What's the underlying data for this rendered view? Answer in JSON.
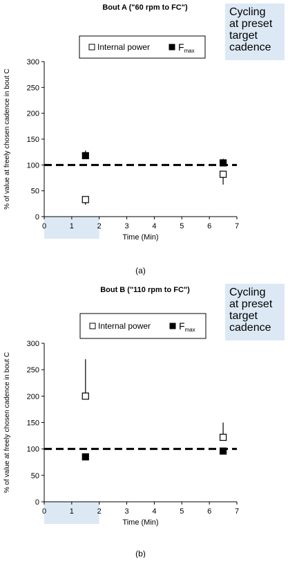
{
  "chart_data": [
    {
      "type": "scatter",
      "title": "Bout A (\"60 rpm to FC\")",
      "annotation": [
        "Cycling",
        "at preset",
        "target",
        "cadence"
      ],
      "xlabel": "Time (Min)",
      "ylabel": "% of value at freely chosen cadence in bout C",
      "xlim": [
        0,
        7
      ],
      "ylim": [
        0,
        300
      ],
      "xticks": [
        "0",
        "1",
        "2",
        "3",
        "4",
        "5",
        "6",
        "7"
      ],
      "yticks": [
        "0",
        "50",
        "100",
        "150",
        "200",
        "250",
        "300"
      ],
      "reference_line": 100,
      "shaded_x_range": [
        0,
        2
      ],
      "legend": {
        "placement": "top-center",
        "entries": [
          "Internal power",
          "F",
          "max"
        ]
      },
      "series": [
        {
          "name": "Internal power",
          "marker": "open-square",
          "x": [
            1.5,
            6.5
          ],
          "y": [
            33,
            82
          ],
          "error_bar": [
            "down",
            "down"
          ],
          "error": [
            10,
            20
          ]
        },
        {
          "name": "Fmax",
          "marker": "filled-square",
          "x": [
            1.5,
            6.5
          ],
          "y": [
            118,
            104
          ],
          "error_bar": [
            "up",
            "up"
          ],
          "error": [
            10,
            8
          ]
        }
      ],
      "caption": "(a)"
    },
    {
      "type": "scatter",
      "title": "Bout B (\"110 rpm to FC\")",
      "annotation": [
        "Cycling",
        "at preset",
        "target",
        "cadence"
      ],
      "xlabel": "Time (Min)",
      "ylabel": "% of value at freely chosen cadence in bout C",
      "xlim": [
        0,
        7
      ],
      "ylim": [
        0,
        300
      ],
      "xticks": [
        "0",
        "1",
        "2",
        "3",
        "4",
        "5",
        "6",
        "7"
      ],
      "yticks": [
        "0",
        "50",
        "100",
        "150",
        "200",
        "250",
        "300"
      ],
      "reference_line": 100,
      "shaded_x_range": [
        0,
        2
      ],
      "legend": {
        "placement": "top-center",
        "entries": [
          "Internal power",
          "F",
          "max"
        ]
      },
      "series": [
        {
          "name": "Internal power",
          "marker": "open-square",
          "x": [
            1.5,
            6.5
          ],
          "y": [
            200,
            122
          ],
          "error_bar": [
            "up",
            "up"
          ],
          "error": [
            70,
            28
          ]
        },
        {
          "name": "Fmax",
          "marker": "filled-square",
          "x": [
            1.5,
            6.5
          ],
          "y": [
            85,
            96
          ],
          "error_bar": [
            "down",
            "down"
          ],
          "error": [
            6,
            4
          ]
        }
      ],
      "caption": "(b)"
    }
  ]
}
